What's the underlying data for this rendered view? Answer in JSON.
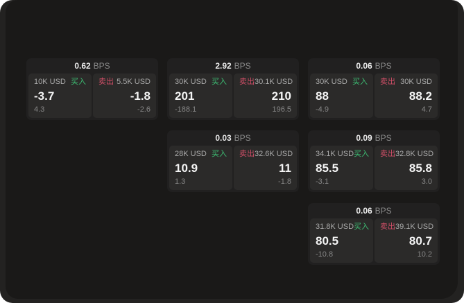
{
  "labels": {
    "bps": "BPS",
    "buy": "买入",
    "sell": "卖出"
  },
  "colors": {
    "buy_green": "#3dbd73",
    "sell_red": "#d24f68",
    "surface_outer": "#232221",
    "surface_inner": "#1a1918",
    "card_bg": "#212020",
    "panel_bg": "#2b2a29"
  },
  "cards": [
    {
      "bps": "0.62",
      "buy": {
        "amount": "10K USD",
        "value": "-3.7",
        "sub": "4.3"
      },
      "sell": {
        "amount": "5.5K USD",
        "value": "-1.8",
        "sub": "-2.6"
      }
    },
    {
      "bps": "2.92",
      "buy": {
        "amount": "30K USD",
        "value": "201",
        "sub": "-188.1"
      },
      "sell": {
        "amount": "30.1K USD",
        "value": "210",
        "sub": "196.5"
      }
    },
    {
      "bps": "0.06",
      "buy": {
        "amount": "30K USD",
        "value": "88",
        "sub": "-4.9"
      },
      "sell": {
        "amount": "30K USD",
        "value": "88.2",
        "sub": "4.7"
      }
    },
    {
      "bps": "0.03",
      "buy": {
        "amount": "28K USD",
        "value": "10.9",
        "sub": "1.3"
      },
      "sell": {
        "amount": "32.6K USD",
        "value": "11",
        "sub": "-1.8"
      }
    },
    {
      "bps": "0.09",
      "buy": {
        "amount": "34.1K USD",
        "value": "85.5",
        "sub": "-3.1"
      },
      "sell": {
        "amount": "32.8K USD",
        "value": "85.8",
        "sub": "3.0"
      }
    },
    {
      "bps": "0.06",
      "buy": {
        "amount": "31.8K USD",
        "value": "80.5",
        "sub": "-10.8"
      },
      "sell": {
        "amount": "39.1K USD",
        "value": "80.7",
        "sub": "10.2"
      }
    }
  ]
}
